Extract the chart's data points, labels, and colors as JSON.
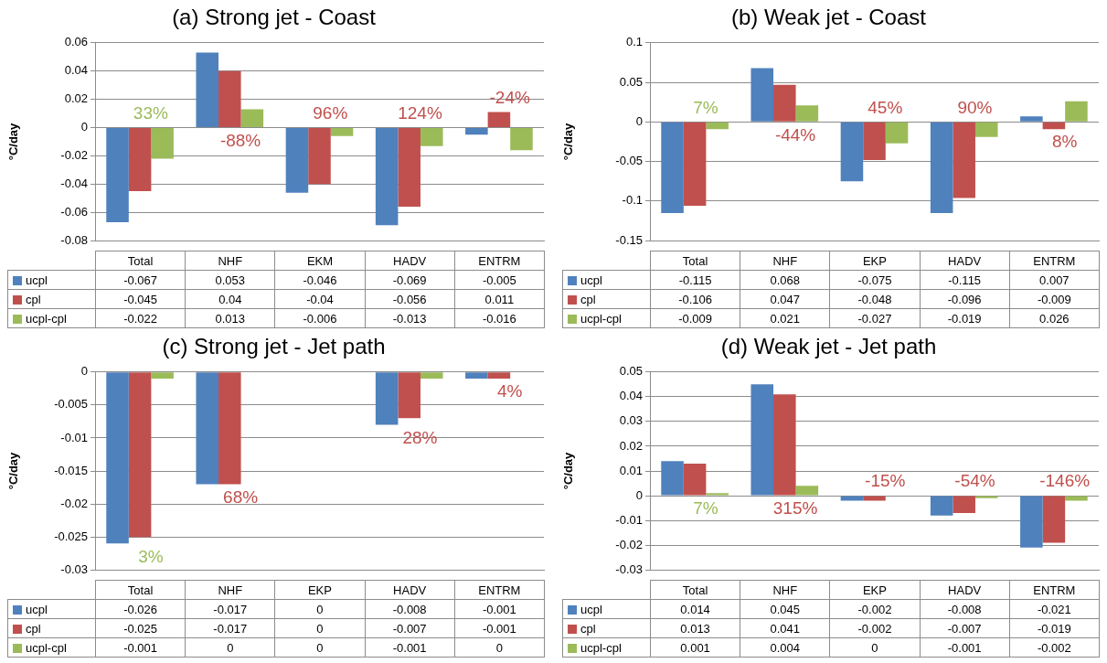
{
  "chart_data": [
    {
      "type": "bar",
      "title": "(a) Strong jet - Coast",
      "ylabel": "°C/day",
      "categories": [
        "Total",
        "NHF",
        "EKM",
        "HADV",
        "ENTRM"
      ],
      "series": [
        {
          "name": "ucpl",
          "color": "#4f81bd",
          "values": [
            -0.067,
            0.053,
            -0.046,
            -0.069,
            -0.005
          ]
        },
        {
          "name": "cpl",
          "color": "#c0504d",
          "values": [
            -0.045,
            0.04,
            -0.04,
            -0.056,
            0.011
          ]
        },
        {
          "name": "ucpl-cpl",
          "color": "#9bbb59",
          "values": [
            -0.022,
            0.013,
            -0.006,
            -0.013,
            -0.016
          ]
        }
      ],
      "ylim": [
        -0.08,
        0.06
      ],
      "yticks": [
        -0.08,
        -0.06,
        -0.04,
        -0.02,
        0,
        0.02,
        0.04,
        0.06
      ],
      "grid": "y",
      "legend": "bottom",
      "data_labels": true,
      "annotations": [
        "33%",
        "-88%",
        "96%",
        "124%",
        "-24%"
      ]
    },
    {
      "type": "bar",
      "title": "(b) Weak jet - Coast",
      "ylabel": "°C/day",
      "categories": [
        "Total",
        "NHF",
        "EKP",
        "HADV",
        "ENTRM"
      ],
      "series": [
        {
          "name": "ucpl",
          "color": "#4f81bd",
          "values": [
            -0.115,
            0.068,
            -0.075,
            -0.115,
            0.007
          ]
        },
        {
          "name": "cpl",
          "color": "#c0504d",
          "values": [
            -0.106,
            0.047,
            -0.048,
            -0.096,
            -0.009
          ]
        },
        {
          "name": "ucpl-cpl",
          "color": "#9bbb59",
          "values": [
            -0.009,
            0.021,
            -0.027,
            -0.019,
            0.026
          ]
        }
      ],
      "ylim": [
        -0.15,
        0.1
      ],
      "yticks": [
        -0.15,
        -0.1,
        -0.05,
        0,
        0.05,
        0.1
      ],
      "grid": "y",
      "legend": "bottom",
      "data_labels": true,
      "annotations": [
        "7%",
        "-44%",
        "45%",
        "90%",
        "8%"
      ]
    },
    {
      "type": "bar",
      "title": "(c) Strong jet - Jet path",
      "ylabel": "°C/day",
      "categories": [
        "Total",
        "NHF",
        "EKP",
        "HADV",
        "ENTRM"
      ],
      "series": [
        {
          "name": "ucpl",
          "color": "#4f81bd",
          "values": [
            -0.026,
            -0.017,
            0,
            -0.008,
            -0.001
          ]
        },
        {
          "name": "cpl",
          "color": "#c0504d",
          "values": [
            -0.025,
            -0.017,
            0,
            -0.007,
            -0.001
          ]
        },
        {
          "name": "ucpl-cpl",
          "color": "#9bbb59",
          "values": [
            -0.001,
            0,
            0,
            -0.001,
            0
          ]
        }
      ],
      "ylim": [
        -0.03,
        0
      ],
      "yticks": [
        -0.03,
        -0.025,
        -0.02,
        -0.015,
        -0.01,
        -0.005,
        0
      ],
      "grid": "y",
      "legend": "bottom",
      "data_labels": true,
      "annotations": [
        "3%",
        "68%",
        "28%",
        "4%"
      ]
    },
    {
      "type": "bar",
      "title": "(d) Weak jet - Jet path",
      "ylabel": "°C/day",
      "categories": [
        "Total",
        "NHF",
        "EKP",
        "HADV",
        "ENTRM"
      ],
      "series": [
        {
          "name": "ucpl",
          "color": "#4f81bd",
          "values": [
            0.014,
            0.045,
            -0.002,
            -0.008,
            -0.021
          ]
        },
        {
          "name": "cpl",
          "color": "#c0504d",
          "values": [
            0.013,
            0.041,
            -0.002,
            -0.007,
            -0.019
          ]
        },
        {
          "name": "ucpl-cpl",
          "color": "#9bbb59",
          "values": [
            0.001,
            0.004,
            0,
            -0.001,
            -0.002
          ]
        }
      ],
      "ylim": [
        -0.03,
        0.05
      ],
      "yticks": [
        -0.03,
        -0.02,
        -0.01,
        0,
        0.01,
        0.02,
        0.03,
        0.04,
        0.05
      ],
      "grid": "y",
      "legend": "bottom",
      "data_labels": true,
      "annotations": [
        "7%",
        "315%",
        "-15%",
        "-54%",
        "-146%"
      ]
    }
  ]
}
